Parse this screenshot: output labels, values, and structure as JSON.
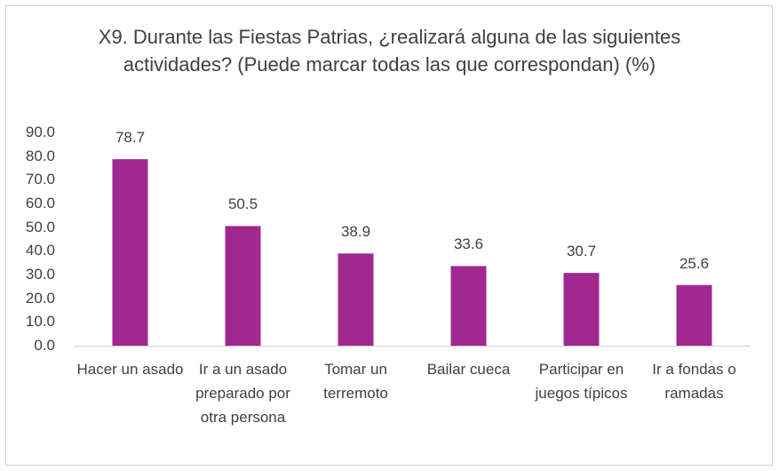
{
  "chart_data": {
    "type": "bar",
    "title": "X9. Durante las Fiestas Patrias, ¿realizará alguna de las siguientes actividades? (Puede marcar todas las que correspondan) (%)",
    "categories": [
      "Hacer un asado",
      "Ir a un asado preparado por otra persona",
      "Tomar un terremoto",
      "Bailar cueca",
      "Participar en juegos típicos",
      "Ir a fondas o ramadas"
    ],
    "values": [
      78.7,
      50.5,
      38.9,
      33.6,
      30.7,
      25.6
    ],
    "color": "#a0288f",
    "ylim": [
      0,
      90
    ],
    "yticks": [
      {
        "value": 0,
        "label": "0.0"
      },
      {
        "value": 10,
        "label": "10.0"
      },
      {
        "value": 20,
        "label": "20.0"
      },
      {
        "value": 30,
        "label": "30.0"
      },
      {
        "value": 40,
        "label": "40.0"
      },
      {
        "value": 50,
        "label": "50.0"
      },
      {
        "value": 60,
        "label": "60.0"
      },
      {
        "value": 70,
        "label": "70.0"
      },
      {
        "value": 80,
        "label": "80.0"
      },
      {
        "value": 90,
        "label": "90.0"
      }
    ],
    "grid": false
  }
}
